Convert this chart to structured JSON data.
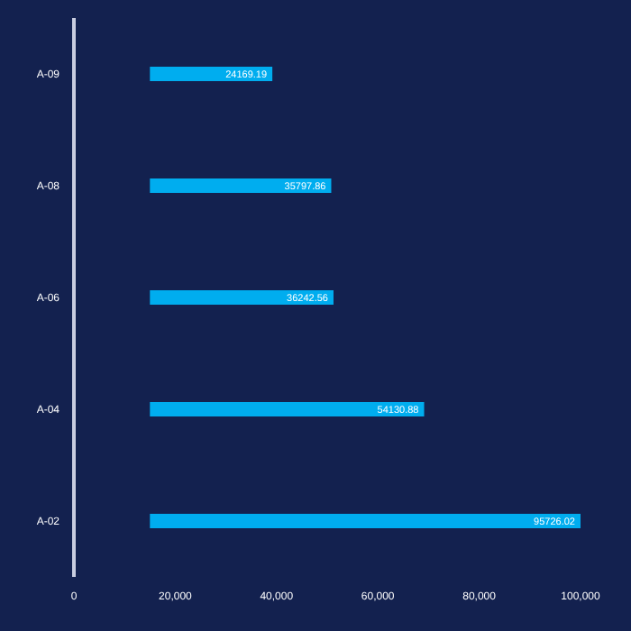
{
  "chart_data": {
    "type": "bar",
    "orientation": "horizontal",
    "categories": [
      "A-09",
      "A-08",
      "A-06",
      "A-04",
      "A-02"
    ],
    "values": [
      24169.19,
      35797.86,
      36242.56,
      54130.88,
      95726.02
    ],
    "base": [
      15000,
      15000,
      15000,
      15000,
      15000
    ],
    "value_labels": [
      "24169.19",
      "35797.86",
      "36242.56",
      "54130.88",
      "95726.02"
    ],
    "color": "#00adef",
    "xlim": [
      0,
      100000
    ],
    "xticks": [
      {
        "value": 0,
        "label": "0"
      },
      {
        "value": 20000,
        "label": "20,000"
      },
      {
        "value": 40000,
        "label": "40,000"
      },
      {
        "value": 60000,
        "label": "60,000"
      },
      {
        "value": 80000,
        "label": "80,000"
      },
      {
        "value": 100000,
        "label": "100,000"
      }
    ],
    "grid": false,
    "legend": false
  }
}
